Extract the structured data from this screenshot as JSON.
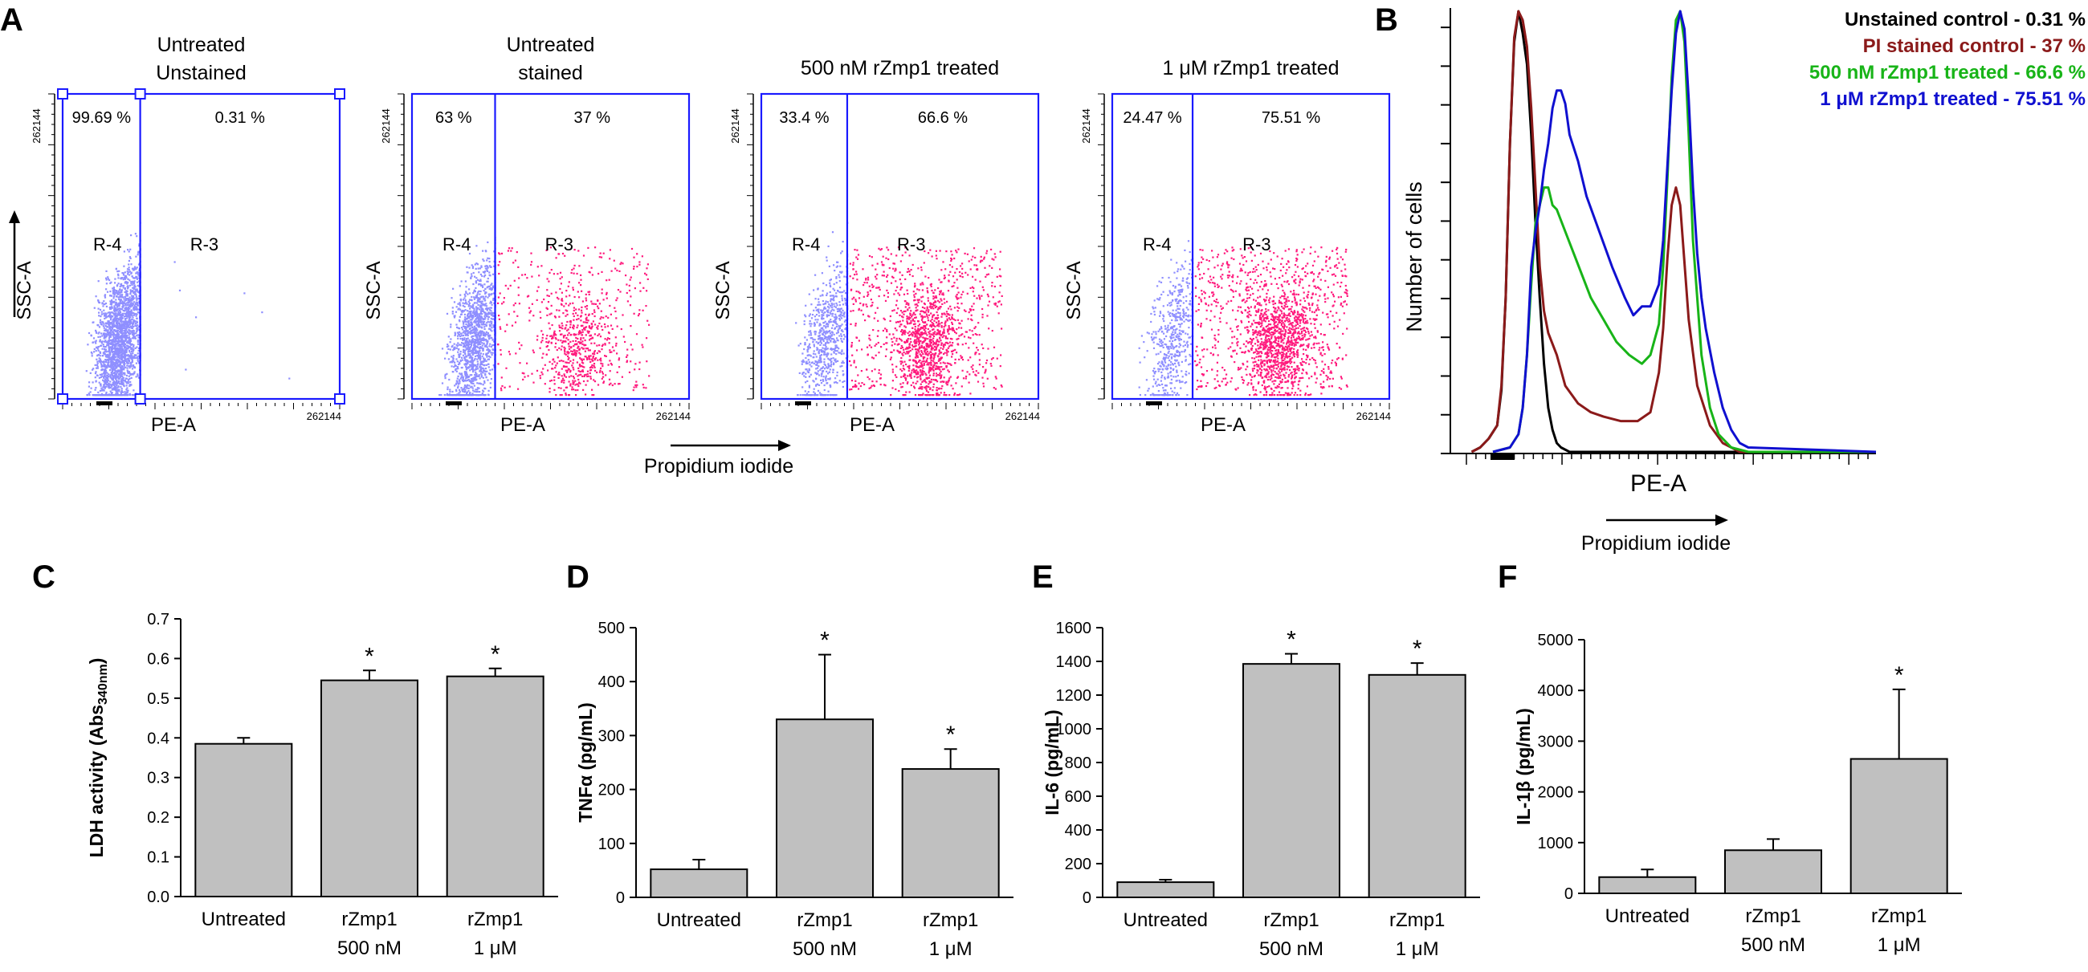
{
  "panel_letters": {
    "a": "A",
    "b": "B",
    "c": "C",
    "d": "D",
    "e": "E",
    "f": "F"
  },
  "colors": {
    "gate": "#1a1aff",
    "unstained_dots": "#8f8fff",
    "pi_dots": "#ff1a7d",
    "bar_fill": "#c0c0c0",
    "hist_unstained": "#000000",
    "hist_pi": "#8b1a1a",
    "hist_500": "#18b418",
    "hist_1um": "#1010d0"
  },
  "chart_data": [
    {
      "panel": "A",
      "type": "scatter",
      "title_lines": [
        "Untreated",
        "Unstained"
      ],
      "xlabel": "PE-A",
      "ylabel": "SSC-A",
      "y_tick_label": "262144",
      "x_max_label": "262144",
      "left_gate": "R-4",
      "right_gate": "R-3",
      "left_pct": "99.69 %",
      "right_pct": "0.31 %",
      "left_fraction": 0.9969,
      "right_fraction": 0.0031,
      "gate_split_fraction": 0.28,
      "y_arrow": true
    },
    {
      "panel": "A",
      "type": "scatter",
      "title_lines": [
        "Untreated",
        "stained"
      ],
      "xlabel": "PE-A",
      "ylabel": "SSC-A",
      "y_tick_label": "262144",
      "x_max_label": "262144",
      "left_gate": "R-4",
      "right_gate": "R-3",
      "left_pct": "63 %",
      "right_pct": "37 %",
      "left_fraction": 0.63,
      "right_fraction": 0.37,
      "gate_split_fraction": 0.3
    },
    {
      "panel": "A",
      "type": "scatter",
      "title_lines": [
        "500 nM rZmp1 treated"
      ],
      "xlabel": "PE-A",
      "ylabel": "SSC-A",
      "y_tick_label": "262144",
      "x_max_label": "262144",
      "left_gate": "R-4",
      "right_gate": "R-3",
      "left_pct": "33.4 %",
      "right_pct": "66.6  %",
      "left_fraction": 0.334,
      "right_fraction": 0.666,
      "gate_split_fraction": 0.31,
      "x_arrow_label": "Propidium iodide"
    },
    {
      "panel": "A",
      "type": "scatter",
      "title_lines": [
        "1 μM rZmp1 treated"
      ],
      "xlabel": "PE-A",
      "ylabel": "SSC-A",
      "y_tick_label": "262144",
      "x_max_label": "262144",
      "left_gate": "R-4",
      "right_gate": "R-3",
      "left_pct": "24.47 %",
      "right_pct": "75.51 %",
      "left_fraction": 0.2447,
      "right_fraction": 0.7551,
      "gate_split_fraction": 0.29
    },
    {
      "panel": "B",
      "type": "line",
      "xlabel": "PE-A",
      "ylabel": "Number of cells",
      "x_arrow_label": "Propidium iodide",
      "series": [
        {
          "name": "Unstained control - 0.31 %",
          "color": "#000000",
          "x": [
            0.05,
            0.07,
            0.09,
            0.11,
            0.12,
            0.13,
            0.14,
            0.15,
            0.16,
            0.17,
            0.18,
            0.19,
            0.2,
            0.21,
            0.22,
            0.23,
            0.24,
            0.25,
            0.26,
            0.28,
            1.0
          ],
          "y": [
            0,
            0.01,
            0.03,
            0.06,
            0.14,
            0.35,
            0.7,
            0.93,
            1.0,
            0.95,
            0.88,
            0.72,
            0.52,
            0.35,
            0.2,
            0.1,
            0.05,
            0.02,
            0.01,
            0,
            0
          ]
        },
        {
          "name": "PI stained control - 37 %",
          "color": "#8b1a1a",
          "x": [
            0.05,
            0.07,
            0.09,
            0.11,
            0.12,
            0.13,
            0.14,
            0.15,
            0.16,
            0.17,
            0.18,
            0.19,
            0.2,
            0.21,
            0.22,
            0.23,
            0.25,
            0.27,
            0.3,
            0.33,
            0.36,
            0.4,
            0.44,
            0.47,
            0.49,
            0.5,
            0.51,
            0.52,
            0.53,
            0.54,
            0.56,
            0.58,
            0.61,
            0.64,
            0.68,
            1.0
          ],
          "y": [
            0,
            0.01,
            0.03,
            0.06,
            0.15,
            0.35,
            0.7,
            0.94,
            1.0,
            0.98,
            0.92,
            0.78,
            0.6,
            0.42,
            0.32,
            0.27,
            0.22,
            0.15,
            0.11,
            0.09,
            0.08,
            0.07,
            0.07,
            0.09,
            0.18,
            0.28,
            0.44,
            0.56,
            0.6,
            0.56,
            0.3,
            0.15,
            0.06,
            0.02,
            0,
            0
          ]
        },
        {
          "name": "500 nM rZmp1 treated  -  66.6  %",
          "color": "#18b418",
          "x": [
            0.1,
            0.14,
            0.16,
            0.17,
            0.18,
            0.19,
            0.2,
            0.21,
            0.22,
            0.23,
            0.24,
            0.25,
            0.27,
            0.29,
            0.31,
            0.33,
            0.36,
            0.39,
            0.42,
            0.45,
            0.47,
            0.49,
            0.5,
            0.51,
            0.52,
            0.53,
            0.54,
            0.55,
            0.56,
            0.57,
            0.58,
            0.59,
            0.61,
            0.63,
            0.66,
            0.7,
            1.0
          ],
          "y": [
            0,
            0.01,
            0.04,
            0.1,
            0.22,
            0.38,
            0.52,
            0.56,
            0.6,
            0.6,
            0.56,
            0.55,
            0.5,
            0.45,
            0.4,
            0.35,
            0.3,
            0.25,
            0.22,
            0.2,
            0.22,
            0.29,
            0.42,
            0.62,
            0.85,
            0.98,
            1.0,
            0.93,
            0.72,
            0.48,
            0.35,
            0.22,
            0.1,
            0.04,
            0.01,
            0,
            0
          ]
        },
        {
          "name": "1 μM rZmp1 treated - 75.51 %",
          "color": "#1010d0",
          "x": [
            0.1,
            0.14,
            0.16,
            0.17,
            0.18,
            0.19,
            0.2,
            0.21,
            0.22,
            0.23,
            0.24,
            0.25,
            0.26,
            0.27,
            0.28,
            0.3,
            0.32,
            0.35,
            0.38,
            0.41,
            0.43,
            0.45,
            0.47,
            0.49,
            0.5,
            0.51,
            0.52,
            0.53,
            0.54,
            0.55,
            0.56,
            0.57,
            0.58,
            0.59,
            0.6,
            0.62,
            0.64,
            0.66,
            0.68,
            0.7,
            1.0
          ],
          "y": [
            0,
            0.01,
            0.04,
            0.1,
            0.22,
            0.42,
            0.5,
            0.56,
            0.64,
            0.7,
            0.78,
            0.82,
            0.82,
            0.79,
            0.72,
            0.66,
            0.58,
            0.5,
            0.42,
            0.35,
            0.31,
            0.33,
            0.33,
            0.38,
            0.48,
            0.65,
            0.82,
            0.95,
            1.0,
            0.96,
            0.8,
            0.6,
            0.45,
            0.35,
            0.28,
            0.18,
            0.1,
            0.05,
            0.02,
            0.01,
            0
          ]
        }
      ]
    },
    {
      "panel": "C",
      "type": "bar",
      "ylabel_main": "LDH activity (Abs",
      "ylabel_sub": "340nm",
      "ylabel_close": ")",
      "categories": [
        [
          "Untreated"
        ],
        [
          "rZmp1",
          "500 nM"
        ],
        [
          "rZmp1",
          "1 μM"
        ]
      ],
      "values": [
        0.385,
        0.545,
        0.555
      ],
      "errors": [
        0.015,
        0.025,
        0.02
      ],
      "significant": [
        "",
        "*",
        "*"
      ],
      "ylim": [
        0,
        0.7
      ],
      "yticks": [
        0,
        0.1,
        0.2,
        0.3,
        0.4,
        0.5,
        0.6,
        0.7
      ],
      "ytick_labels": [
        "0.0",
        "0.1",
        "0.2",
        "0.3",
        "0.4",
        "0.5",
        "0.6",
        "0.7"
      ]
    },
    {
      "panel": "D",
      "type": "bar",
      "ylabel_main": "TNFα (pg/mL)",
      "categories": [
        [
          "Untreated"
        ],
        [
          "rZmp1",
          "500 nM"
        ],
        [
          "rZmp1",
          "1 μM"
        ]
      ],
      "values": [
        52,
        330,
        238
      ],
      "errors": [
        18,
        120,
        37
      ],
      "significant": [
        "",
        "*",
        "*"
      ],
      "ylim": [
        0,
        500
      ],
      "yticks": [
        0,
        100,
        200,
        300,
        400,
        500
      ],
      "ytick_labels": [
        "0",
        "100",
        "200",
        "300",
        "400",
        "500"
      ]
    },
    {
      "panel": "E",
      "type": "bar",
      "ylabel_main": "IL-6 (pg/mL)",
      "categories": [
        [
          "Untreated"
        ],
        [
          "rZmp1",
          "500 nM"
        ],
        [
          "rZmp1",
          "1 μM"
        ]
      ],
      "values": [
        90,
        1385,
        1320
      ],
      "errors": [
        15,
        60,
        70
      ],
      "significant": [
        "",
        "*",
        "*"
      ],
      "ylim": [
        0,
        1600
      ],
      "yticks": [
        0,
        200,
        400,
        600,
        800,
        1000,
        1200,
        1400,
        1600
      ],
      "ytick_labels": [
        "0",
        "200",
        "400",
        "600",
        "800",
        "1000",
        "1200",
        "1400",
        "1600"
      ]
    },
    {
      "panel": "F",
      "type": "bar",
      "ylabel_main": "IL-1β (pg/mL)",
      "categories": [
        [
          "Untreated"
        ],
        [
          "rZmp1",
          "500 nM"
        ],
        [
          "rZmp1",
          "1 μM"
        ]
      ],
      "values": [
        320,
        850,
        2650
      ],
      "errors": [
        150,
        220,
        1370
      ],
      "significant": [
        "",
        "",
        "*"
      ],
      "ylim": [
        0,
        5000
      ],
      "yticks": [
        0,
        1000,
        2000,
        3000,
        4000,
        5000
      ],
      "ytick_labels": [
        "0",
        "1000",
        "2000",
        "3000",
        "4000",
        "5000"
      ]
    }
  ]
}
